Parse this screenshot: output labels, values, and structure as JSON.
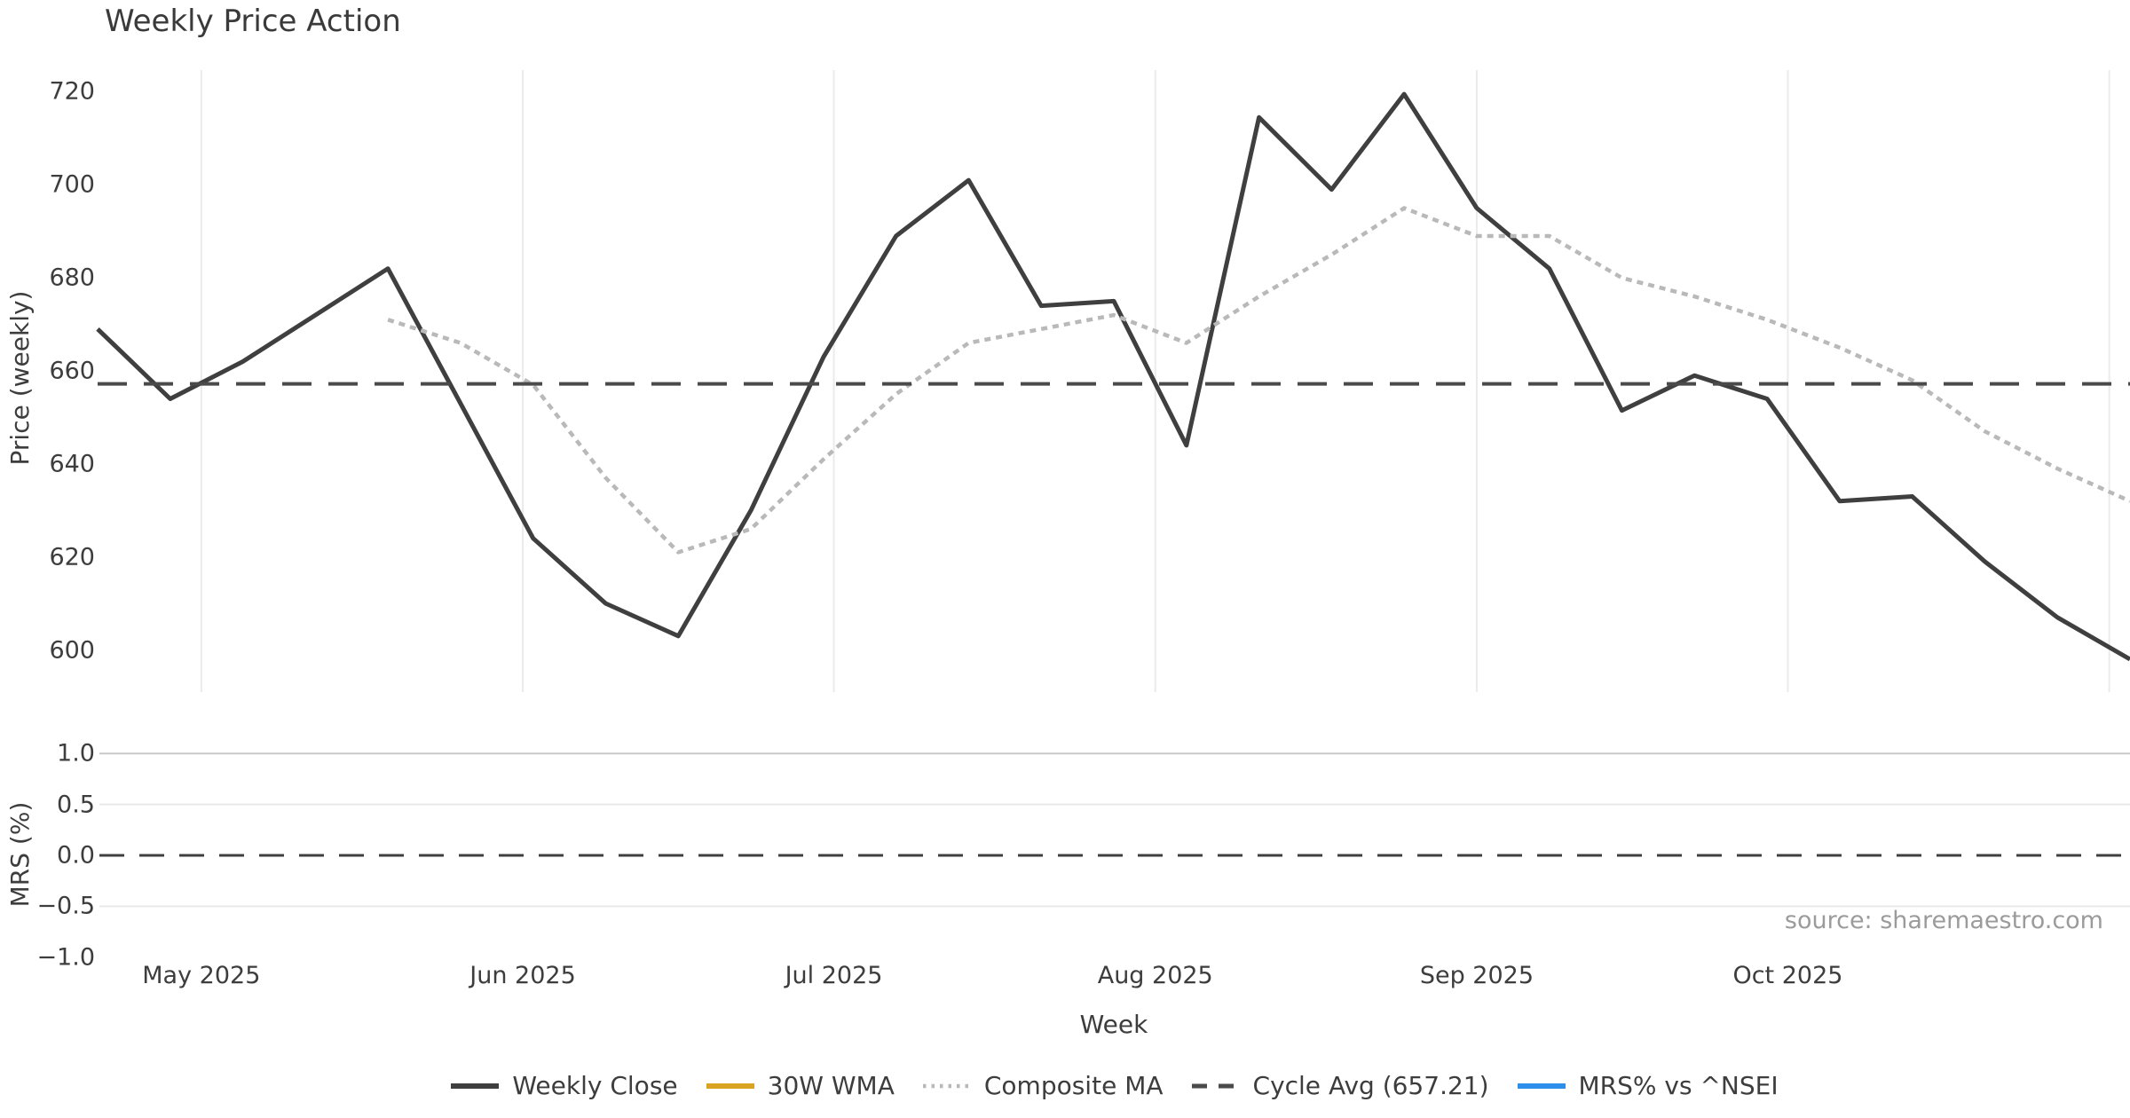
{
  "source_note": "source: sharemaestro.com",
  "legend": {
    "position": "bottom-center",
    "items": [
      {
        "label": "Weekly Close",
        "color": "#3f3f3f",
        "style": "solid"
      },
      {
        "label": "30W WMA",
        "color": "#d9a521",
        "style": "solid"
      },
      {
        "label": "Composite MA",
        "color": "#b9b9b9",
        "style": "dotted"
      },
      {
        "label": "Cycle Avg (657.21)",
        "color": "#4a4a4a",
        "style": "dashed"
      },
      {
        "label": "MRS% vs ^NSEI",
        "color": "#2e8fea",
        "style": "solid"
      }
    ]
  },
  "chart_data": [
    {
      "type": "line",
      "title": "Weekly Price Action",
      "xlabel": "Week",
      "ylabel": "Price (weekly)",
      "yticks": [
        720,
        700,
        680,
        660,
        640,
        620,
        600
      ],
      "ylim": [
        592,
        727
      ],
      "grid": "vertical-month-gridlines-only",
      "x": [
        "2025-04-21",
        "2025-04-28",
        "2025-05-05",
        "2025-05-12",
        "2025-05-19",
        "2025-05-26",
        "2025-06-02",
        "2025-06-09",
        "2025-06-16",
        "2025-06-23",
        "2025-06-30",
        "2025-07-07",
        "2025-07-14",
        "2025-07-21",
        "2025-07-28",
        "2025-08-04",
        "2025-08-11",
        "2025-08-18",
        "2025-08-25",
        "2025-09-01",
        "2025-09-08",
        "2025-09-15",
        "2025-09-22",
        "2025-09-29",
        "2025-10-06",
        "2025-10-13",
        "2025-10-20",
        "2025-10-27",
        "2025-11-03"
      ],
      "x_ticks": [
        {
          "date": "2025-05-01",
          "label": "May 2025"
        },
        {
          "date": "2025-06-01",
          "label": "Jun 2025"
        },
        {
          "date": "2025-07-01",
          "label": "Jul 2025"
        },
        {
          "date": "2025-08-01",
          "label": "Aug 2025"
        },
        {
          "date": "2025-09-01",
          "label": "Sep 2025"
        },
        {
          "date": "2025-10-01",
          "label": "Oct 2025"
        },
        {
          "date": "2025-11-01",
          "label": ""
        }
      ],
      "series": [
        {
          "name": "Weekly Close",
          "style": "solid",
          "color": "#3f3f3f",
          "values": [
            669,
            654,
            662,
            672,
            682,
            653,
            624,
            610,
            603,
            630,
            663,
            689,
            701,
            674,
            675,
            644,
            714.5,
            699,
            719.5,
            695,
            682,
            651.5,
            659,
            654,
            632,
            633,
            619,
            607,
            598
          ]
        },
        {
          "name": "30W WMA",
          "style": "solid",
          "color": "#d9a521",
          "values": []
        },
        {
          "name": "Composite MA",
          "style": "dotted",
          "color": "#b9b9b9",
          "values": [
            null,
            null,
            null,
            null,
            671,
            666,
            657,
            637,
            621,
            626,
            641,
            655,
            666,
            669,
            672,
            666,
            676,
            685,
            695,
            689,
            689,
            680,
            676,
            671,
            665,
            658,
            647,
            639,
            632
          ]
        },
        {
          "name": "Cycle Avg",
          "style": "dashed",
          "color": "#4a4a4a",
          "constant": 657.21
        }
      ],
      "legend_position": "bottom-center"
    },
    {
      "type": "line",
      "ylabel": "MRS (%)",
      "yticks": [
        {
          "label": "1.0",
          "value": 1.0
        },
        {
          "label": "0.5",
          "value": 0.5
        },
        {
          "label": "0.0",
          "value": 0.0
        },
        {
          "label": "−0.5",
          "value": -0.5
        },
        {
          "label": "−1.0",
          "value": -1.0
        }
      ],
      "ylim": [
        -1.0,
        1.0
      ],
      "grid_values": [
        1.0,
        0.5,
        -0.5
      ],
      "series": [
        {
          "name": "MRS% vs ^NSEI",
          "style": "solid",
          "color": "#2e8fea",
          "values": []
        },
        {
          "name": "Zero line",
          "style": "dashed",
          "color": "#3f3f3f",
          "constant": 0.0
        }
      ]
    }
  ]
}
